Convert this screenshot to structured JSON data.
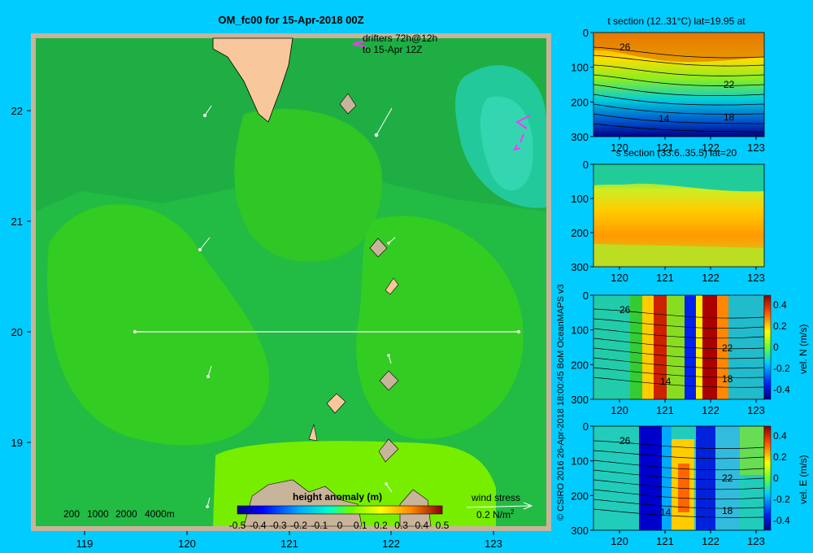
{
  "main_map": {
    "title": "OM_fc00 for 15-Apr-2018 00Z",
    "lon_ticks": [
      "119",
      "120",
      "121",
      "122",
      "123"
    ],
    "lat_ticks": [
      "22",
      "21",
      "20",
      "19"
    ],
    "drifters_line1": "drifters 72h@12h",
    "drifters_line2": "to 15-Apr 12Z",
    "bathy_contours": [
      "200",
      "1000",
      "2000",
      "4000m"
    ],
    "colorbar_title": "height anomaly  (m)",
    "colorbar_ticks": [
      "-0.5",
      "-0.4",
      "-0.3",
      "-0.2",
      "-0.1",
      "0",
      "0.1",
      "0.2",
      "0.3",
      "0.4",
      "0.5"
    ],
    "wind_label": "wind stress",
    "wind_scale": "0.2 N/m",
    "wind_scale_sup": "2",
    "section_line": {
      "lat": 20,
      "lon_start": 119.5,
      "lon_end": 123.2
    }
  },
  "credit": "© CSIRO 2016   26-Apr-2018 18:00:45 BoM OceanMAPS v3",
  "panels": [
    {
      "title": "t section (12..31°C) lat=19.95 at",
      "colorbar": null,
      "contours": [
        "26",
        "22",
        "18",
        "14"
      ]
    },
    {
      "title": "s section (33.6..35.5) lat=20",
      "colorbar": null,
      "contours": []
    },
    {
      "title": "",
      "colorbar": {
        "label": "vel. N (m/s)",
        "ticks": [
          "0.4",
          "0.2",
          "0",
          "-0.2",
          "-0.4"
        ]
      },
      "contours": [
        "26",
        "22",
        "14",
        "18"
      ]
    },
    {
      "title": "",
      "colorbar": {
        "label": "vel. E (m/s)",
        "ticks": [
          "0.4",
          "0.2",
          "0",
          "-0.2",
          "-0.4"
        ]
      },
      "contours": [
        "26",
        "22",
        "14",
        "18"
      ]
    }
  ],
  "panel_axes": {
    "depth_ticks": [
      "0",
      "100",
      "200",
      "300"
    ],
    "lon_ticks": [
      "120",
      "121",
      "122",
      "123"
    ]
  },
  "colors": {
    "background": "#00ccff",
    "frame": "#c8b49a",
    "land": "#f8c89c",
    "ocean_main": "#22bb44",
    "drifter": "#ff33ff"
  }
}
